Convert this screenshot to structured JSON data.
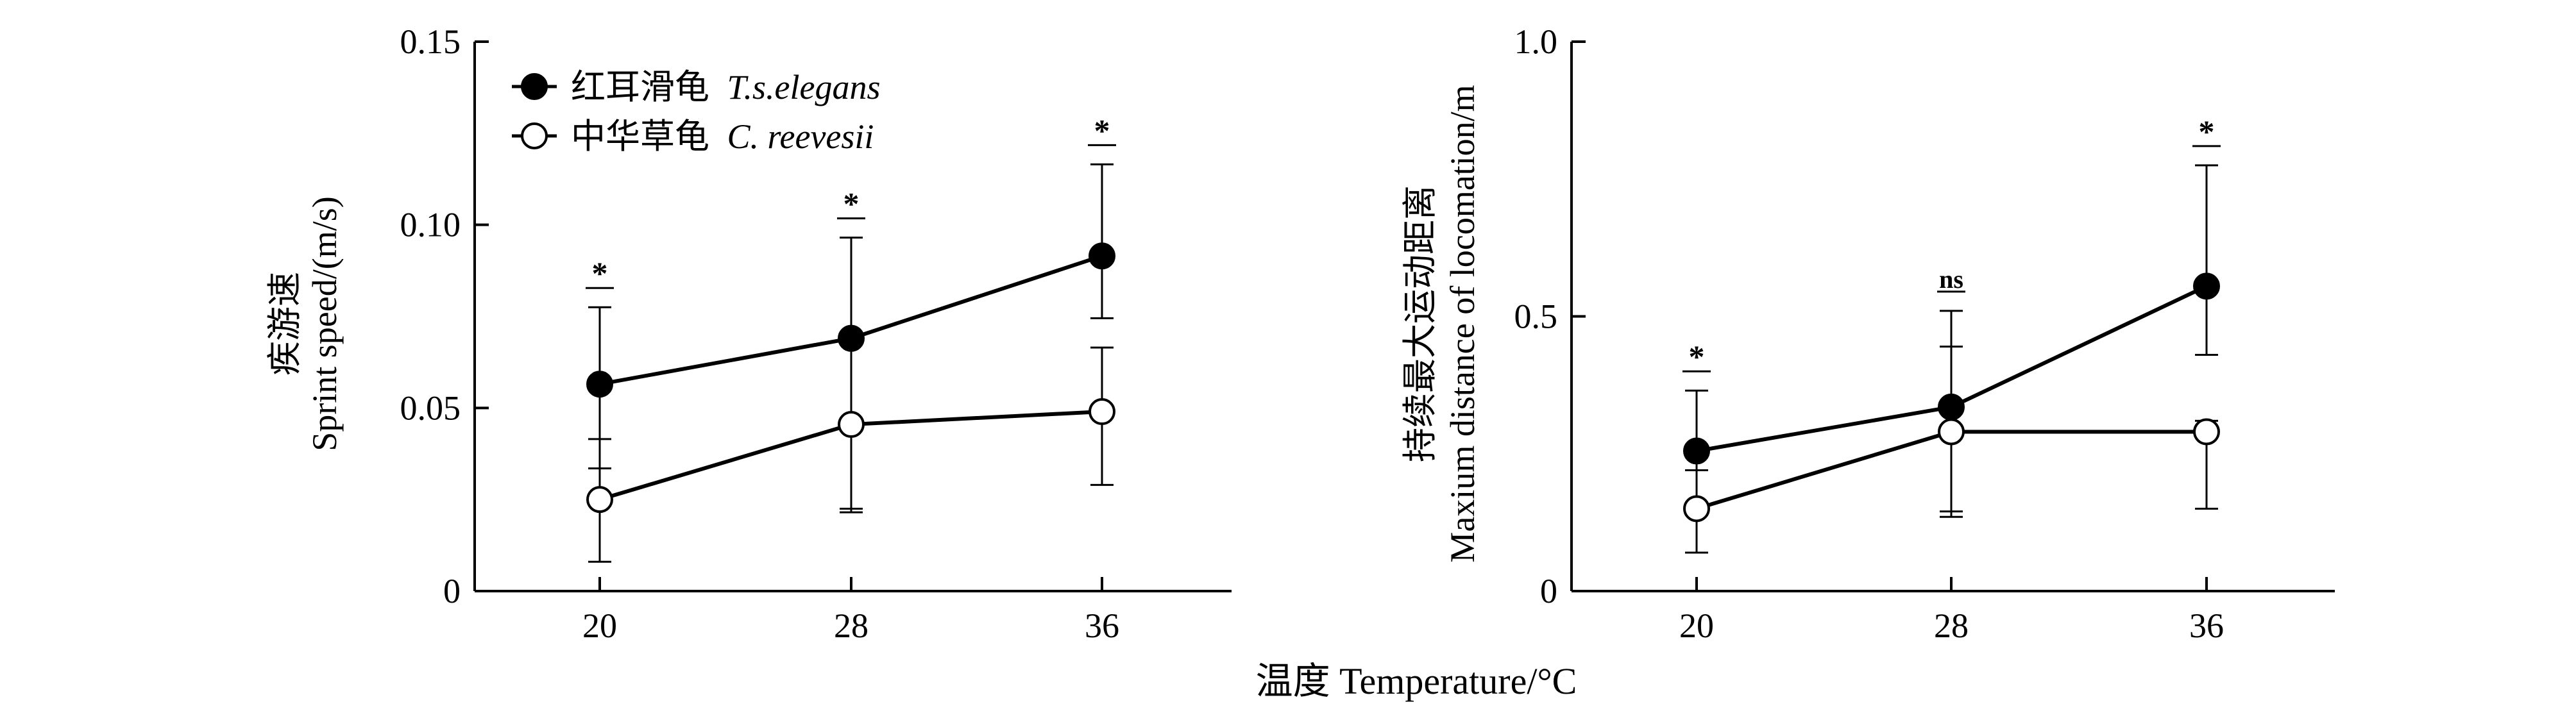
{
  "figure": {
    "shared_xlabel": "温度 Temperature/°C"
  },
  "chart_data": [
    {
      "type": "line",
      "title": "",
      "ylabel_cn": "疾游速",
      "ylabel_en": "Sprint speed/(m/s)",
      "x": [
        20,
        28,
        36
      ],
      "x_ticks": [
        "20",
        "28",
        "36"
      ],
      "ylim": [
        0,
        0.15
      ],
      "y_ticks": [
        {
          "value": 0,
          "label": "0"
        },
        {
          "value": 0.05,
          "label": "0.05"
        },
        {
          "value": 0.1,
          "label": "0.10"
        },
        {
          "value": 0.15,
          "label": "0.15"
        }
      ],
      "legend": {
        "placement": "top-left",
        "entries": [
          {
            "cn": "红耳滑龟",
            "latin": "T.s.elegans",
            "marker": "filled"
          },
          {
            "cn": "中华草龟",
            "latin": "C. reevesii",
            "marker": "open"
          }
        ]
      },
      "series": [
        {
          "name": "红耳滑龟 T.s.elegans",
          "marker": "filled",
          "values": [
            0.0565,
            0.069,
            0.0915
          ],
          "err_low": [
            0.0335,
            0.0215,
            0.0745
          ],
          "err_high": [
            0.0775,
            0.0965,
            0.1165
          ]
        },
        {
          "name": "中华草龟 C. reevesii",
          "marker": "open",
          "values": [
            0.025,
            0.0455,
            0.049
          ],
          "err_low": [
            0.008,
            0.0225,
            0.029
          ],
          "err_high": [
            0.0415,
            0.0685,
            0.0665
          ]
        }
      ],
      "significance": [
        "*",
        "*",
        "*"
      ]
    },
    {
      "type": "line",
      "title": "",
      "ylabel_cn": "持续最大运动距离",
      "ylabel_en": "Maxium distance of locomation/m",
      "x": [
        20,
        28,
        36
      ],
      "x_ticks": [
        "20",
        "28",
        "36"
      ],
      "ylim": [
        0,
        1.0
      ],
      "y_ticks": [
        {
          "value": 0,
          "label": "0"
        },
        {
          "value": 0.5,
          "label": "0.5"
        },
        {
          "value": 1.0,
          "label": "1.0"
        }
      ],
      "series": [
        {
          "name": "红耳滑龟 T.s.elegans",
          "marker": "filled",
          "values": [
            0.255,
            0.335,
            0.555
          ],
          "err_low": [
            0.145,
            0.145,
            0.43
          ],
          "err_high": [
            0.365,
            0.51,
            0.775
          ]
        },
        {
          "name": "中华草龟 C. reevesii",
          "marker": "open",
          "values": [
            0.15,
            0.29,
            0.29
          ],
          "err_low": [
            0.07,
            0.135,
            0.15
          ],
          "err_high": [
            0.22,
            0.445,
            0.31
          ]
        }
      ],
      "significance": [
        "*",
        "ns",
        "*"
      ]
    }
  ]
}
